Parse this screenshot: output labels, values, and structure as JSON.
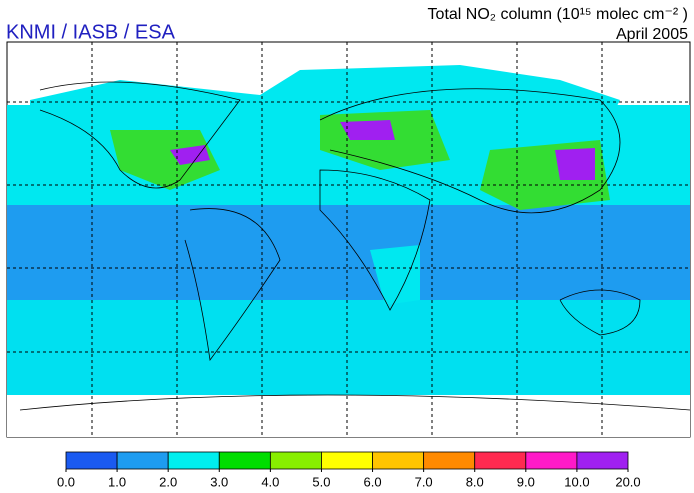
{
  "header": {
    "source": "KNMI / IASB / ESA",
    "title": "Total NO₂ column (10¹⁵ molec cm⁻² )",
    "date": "April 2005"
  },
  "legend": {
    "ticks": [
      {
        "value": 0,
        "label": "0.0"
      },
      {
        "value": 1,
        "label": "1.0"
      },
      {
        "value": 2,
        "label": "2.0"
      },
      {
        "value": 3,
        "label": "3.0"
      },
      {
        "value": 4,
        "label": "4.0"
      },
      {
        "value": 5,
        "label": "5.0"
      },
      {
        "value": 6,
        "label": "6.0"
      },
      {
        "value": 7,
        "label": "7.0"
      },
      {
        "value": 8,
        "label": "8.0"
      },
      {
        "value": 9,
        "label": "9.0"
      },
      {
        "value": 10,
        "label": "10.0"
      },
      {
        "value": 20,
        "label": "20.0"
      }
    ],
    "colors": [
      "#1a5af0",
      "#1e9cf0",
      "#00eeee",
      "#00dd00",
      "#88ee00",
      "#ffff00",
      "#ffc400",
      "#ff8a00",
      "#ff2a50",
      "#ff1ac8",
      "#a020f0"
    ]
  }
}
